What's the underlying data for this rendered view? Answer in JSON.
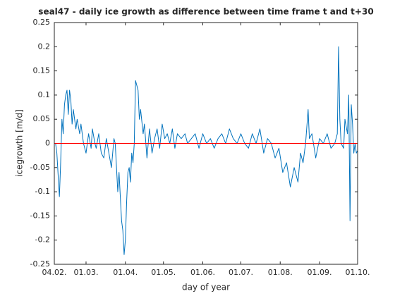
{
  "chart_data": {
    "type": "line",
    "title": "seal47 - daily ice growth as difference between time frame t and t+30",
    "xlabel": "day of year",
    "ylabel": "icegrowth [m/d]",
    "series": [
      {
        "name": "icegrowth",
        "color": "#0072bd",
        "x": [
          36,
          37,
          39,
          40,
          41,
          42,
          43,
          44,
          45,
          46,
          47,
          48,
          49,
          50,
          52,
          53,
          55,
          56,
          58,
          60,
          62,
          64,
          65,
          67,
          68,
          70,
          72,
          74,
          76,
          78,
          80,
          82,
          83,
          85,
          86,
          88,
          89,
          90,
          91,
          92,
          93,
          94,
          95,
          96,
          97,
          98,
          99,
          100,
          101,
          102,
          103,
          105,
          106,
          108,
          109,
          110,
          112,
          114,
          116,
          118,
          120,
          122,
          124,
          126,
          128,
          130,
          132,
          135,
          138,
          140,
          143,
          146,
          149,
          152,
          155,
          158,
          161,
          164,
          167,
          170,
          173,
          176,
          179,
          182,
          185,
          188,
          191,
          194,
          197,
          200,
          203,
          206,
          209,
          212,
          215,
          218,
          221,
          224,
          227,
          229,
          231,
          233,
          235,
          236,
          238,
          241,
          244,
          247,
          250,
          253,
          256,
          258,
          259,
          260,
          261,
          263,
          264,
          266,
          267,
          268,
          269,
          270,
          271,
          272,
          273,
          274
        ],
        "values": [
          0.0,
          -0.02,
          -0.11,
          -0.04,
          0.05,
          0.02,
          0.08,
          0.1,
          0.11,
          0.06,
          0.11,
          0.09,
          0.04,
          0.07,
          0.03,
          0.05,
          0.02,
          0.04,
          0.0,
          -0.02,
          0.02,
          -0.01,
          0.03,
          0.0,
          -0.01,
          0.02,
          -0.02,
          -0.03,
          0.01,
          -0.02,
          -0.05,
          0.01,
          0.0,
          -0.1,
          -0.06,
          -0.16,
          -0.18,
          -0.23,
          -0.2,
          -0.12,
          -0.06,
          -0.05,
          -0.08,
          -0.02,
          -0.04,
          0.0,
          0.13,
          0.12,
          0.11,
          0.05,
          0.07,
          0.02,
          0.04,
          -0.03,
          0.0,
          0.03,
          -0.02,
          0.01,
          0.03,
          -0.01,
          0.04,
          0.01,
          0.02,
          0.0,
          0.03,
          -0.01,
          0.02,
          0.01,
          0.02,
          0.0,
          0.01,
          0.02,
          -0.01,
          0.02,
          0.0,
          0.01,
          -0.01,
          0.01,
          0.02,
          0.0,
          0.03,
          0.01,
          0.0,
          0.02,
          0.0,
          -0.01,
          0.02,
          0.0,
          0.03,
          -0.02,
          0.01,
          0.0,
          -0.03,
          -0.01,
          -0.06,
          -0.04,
          -0.09,
          -0.05,
          -0.08,
          -0.02,
          -0.04,
          0.0,
          0.07,
          0.01,
          0.02,
          -0.03,
          0.01,
          0.0,
          0.02,
          -0.01,
          0.0,
          0.02,
          0.2,
          0.05,
          0.0,
          -0.01,
          0.05,
          0.02,
          0.1,
          -0.16,
          0.08,
          0.04,
          -0.02,
          0.0,
          -0.02,
          -0.015
        ]
      }
    ],
    "hline": {
      "value": 0,
      "color": "#ff0000"
    },
    "xlim": [
      35,
      274
    ],
    "xticks": [
      {
        "value": 35,
        "label": "04.02."
      },
      {
        "value": 60,
        "label": "01.03."
      },
      {
        "value": 91,
        "label": "01.04."
      },
      {
        "value": 121,
        "label": "01.05."
      },
      {
        "value": 152,
        "label": "01.06."
      },
      {
        "value": 182,
        "label": "01.07."
      },
      {
        "value": 213,
        "label": "01.08."
      },
      {
        "value": 244,
        "label": "01.09."
      },
      {
        "value": 274,
        "label": "01.10."
      }
    ],
    "ylim": [
      -0.25,
      0.25
    ],
    "yticks": [
      -0.25,
      -0.2,
      -0.15,
      -0.1,
      -0.05,
      0,
      0.05,
      0.1,
      0.15,
      0.2,
      0.25
    ]
  }
}
